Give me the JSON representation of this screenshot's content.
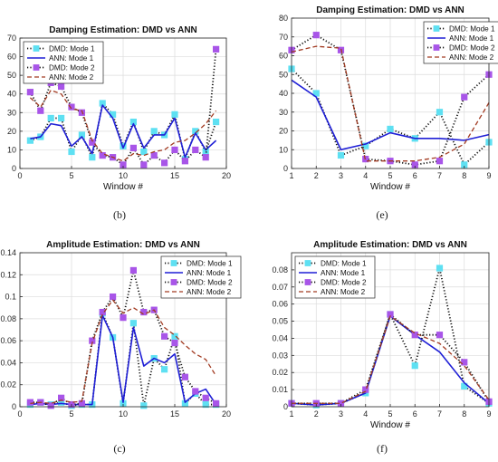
{
  "figure": {
    "captions": [
      "(b)",
      "(e)",
      "(c)",
      "(f)"
    ]
  },
  "colors": {
    "dmd_mode1": "#5ee0f2",
    "ann_mode1": "#1f1fd6",
    "dmd_mode2": "#a855e8",
    "ann_mode2": "#a23b22",
    "dotted_line": "#111111"
  },
  "chart_data": [
    {
      "id": "b",
      "type": "line",
      "title": "Damping Estimation: DMD vs ANN",
      "xlabel": "Window #",
      "ylabel": "",
      "xlim": [
        0,
        20
      ],
      "ylim": [
        0,
        70
      ],
      "xticks": [
        0,
        5,
        10,
        15,
        20
      ],
      "yticks": [
        0,
        10,
        20,
        30,
        40,
        50,
        60,
        70
      ],
      "grid": true,
      "legend_position": "top-left",
      "x": [
        1,
        2,
        3,
        4,
        5,
        6,
        7,
        8,
        9,
        10,
        11,
        12,
        13,
        14,
        15,
        16,
        17,
        18,
        19
      ],
      "series": [
        {
          "name": "DMD: Mode 1",
          "style": "dmd1",
          "values": [
            15,
            17,
            27,
            27,
            9,
            18,
            6,
            35,
            29,
            12,
            25,
            9,
            20,
            18,
            29,
            5,
            20,
            9,
            25
          ]
        },
        {
          "name": "ANN: Mode 1",
          "style": "ann1",
          "values": [
            16,
            17,
            24,
            23,
            12,
            17,
            8,
            34,
            27,
            11,
            24,
            11,
            18,
            18,
            27,
            6,
            19,
            10,
            15
          ]
        },
        {
          "name": "DMD: Mode 2",
          "style": "dmd2",
          "values": [
            41,
            31,
            46,
            44,
            33,
            30,
            14,
            7,
            6,
            2,
            11,
            2,
            7,
            3,
            10,
            4,
            10,
            6,
            64
          ]
        },
        {
          "name": "ANN: Mode 2",
          "style": "ann2",
          "values": [
            38,
            33,
            42,
            40,
            32,
            31,
            15,
            8,
            6,
            4,
            8,
            7,
            9,
            10,
            14,
            15,
            19,
            24,
            31
          ]
        }
      ]
    },
    {
      "id": "e",
      "type": "line",
      "title": "Damping Estimation: DMD vs ANN",
      "xlabel": "Window #",
      "ylabel": "",
      "xlim": [
        1,
        9
      ],
      "ylim": [
        0,
        80
      ],
      "xticks": [
        1,
        2,
        3,
        4,
        5,
        6,
        7,
        8,
        9
      ],
      "yticks": [
        0,
        10,
        20,
        30,
        40,
        50,
        60,
        70,
        80
      ],
      "grid": true,
      "legend_position": "top-right",
      "x": [
        1,
        2,
        3,
        4,
        5,
        6,
        7,
        8,
        9
      ],
      "series": [
        {
          "name": "DMD: Mode 1",
          "style": "dmd1",
          "values": [
            53,
            40,
            7,
            12,
            21,
            16,
            30,
            2,
            14
          ]
        },
        {
          "name": "ANN: Mode 1",
          "style": "ann1",
          "values": [
            47,
            38,
            10,
            13,
            19,
            16,
            16,
            15,
            18
          ]
        },
        {
          "name": "DMD: Mode 2",
          "style": "dmd2",
          "values": [
            63,
            71,
            63,
            5,
            4,
            2,
            4,
            38,
            50
          ]
        },
        {
          "name": "ANN: Mode 2",
          "style": "ann2",
          "values": [
            62,
            65,
            64,
            4,
            4,
            4,
            6,
            13,
            35
          ]
        }
      ]
    },
    {
      "id": "c",
      "type": "line",
      "title": "Amplitude Estimation: DMD vs ANN",
      "xlabel": "",
      "ylabel": "",
      "xlim": [
        0,
        20
      ],
      "ylim": [
        0,
        0.14
      ],
      "xticks": [
        0,
        5,
        10,
        15,
        20
      ],
      "yticks": [
        0,
        0.02,
        0.04,
        0.06,
        0.08,
        0.1,
        0.12,
        0.14
      ],
      "grid": true,
      "legend_position": "top-right",
      "x": [
        1,
        2,
        3,
        4,
        5,
        6,
        7,
        8,
        9,
        10,
        11,
        12,
        13,
        14,
        15,
        16,
        17,
        18,
        19
      ],
      "series": [
        {
          "name": "DMD: Mode 1",
          "style": "dmd1",
          "values": [
            0.002,
            0.004,
            0.002,
            0.004,
            0.001,
            0.002,
            0.002,
            0.085,
            0.063,
            0.003,
            0.076,
            0.001,
            0.044,
            0.034,
            0.064,
            0.003,
            0.012,
            0.002,
            0.002
          ]
        },
        {
          "name": "ANN: Mode 1",
          "style": "ann1",
          "values": [
            0.002,
            0.003,
            0.002,
            0.003,
            0.002,
            0.002,
            0.002,
            0.083,
            0.063,
            0.004,
            0.072,
            0.037,
            0.044,
            0.04,
            0.048,
            0.004,
            0.012,
            0.016,
            0.002
          ]
        },
        {
          "name": "DMD: Mode 2",
          "style": "dmd2",
          "values": [
            0.004,
            0.004,
            0.001,
            0.008,
            0.002,
            0.003,
            0.06,
            0.086,
            0.1,
            0.081,
            0.124,
            0.086,
            0.088,
            0.064,
            0.058,
            0.027,
            0.014,
            0.008,
            0.003
          ]
        },
        {
          "name": "ANN: Mode 2",
          "style": "ann2",
          "values": [
            0.003,
            0.004,
            0.003,
            0.006,
            0.004,
            0.005,
            0.058,
            0.084,
            0.097,
            0.085,
            0.09,
            0.084,
            0.088,
            0.072,
            0.065,
            0.056,
            0.048,
            0.043,
            0.028
          ]
        }
      ]
    },
    {
      "id": "f",
      "type": "line",
      "title": "Amplitude Estimation: DMD vs ANN",
      "xlabel": "Window #",
      "ylabel": "",
      "xlim": [
        1,
        9
      ],
      "ylim": [
        0,
        0.09
      ],
      "xticks": [
        1,
        2,
        3,
        4,
        5,
        6,
        7,
        8,
        9
      ],
      "yticks": [
        0,
        0.01,
        0.02,
        0.03,
        0.04,
        0.05,
        0.06,
        0.07,
        0.08
      ],
      "grid": true,
      "legend_position": "top-left",
      "x": [
        1,
        2,
        3,
        4,
        5,
        6,
        7,
        8,
        9
      ],
      "series": [
        {
          "name": "DMD: Mode 1",
          "style": "dmd1",
          "values": [
            0.002,
            0.001,
            0.002,
            0.008,
            0.054,
            0.024,
            0.081,
            0.012,
            0.002
          ]
        },
        {
          "name": "ANN: Mode 1",
          "style": "ann1",
          "values": [
            0.002,
            0.001,
            0.002,
            0.008,
            0.053,
            0.042,
            0.032,
            0.014,
            0.002
          ]
        },
        {
          "name": "DMD: Mode 2",
          "style": "dmd2",
          "values": [
            0.002,
            0.002,
            0.002,
            0.01,
            0.054,
            0.042,
            0.042,
            0.026,
            0.003
          ]
        },
        {
          "name": "ANN: Mode 2",
          "style": "ann2",
          "values": [
            0.002,
            0.002,
            0.002,
            0.009,
            0.053,
            0.043,
            0.037,
            0.024,
            0.004
          ]
        }
      ]
    }
  ]
}
